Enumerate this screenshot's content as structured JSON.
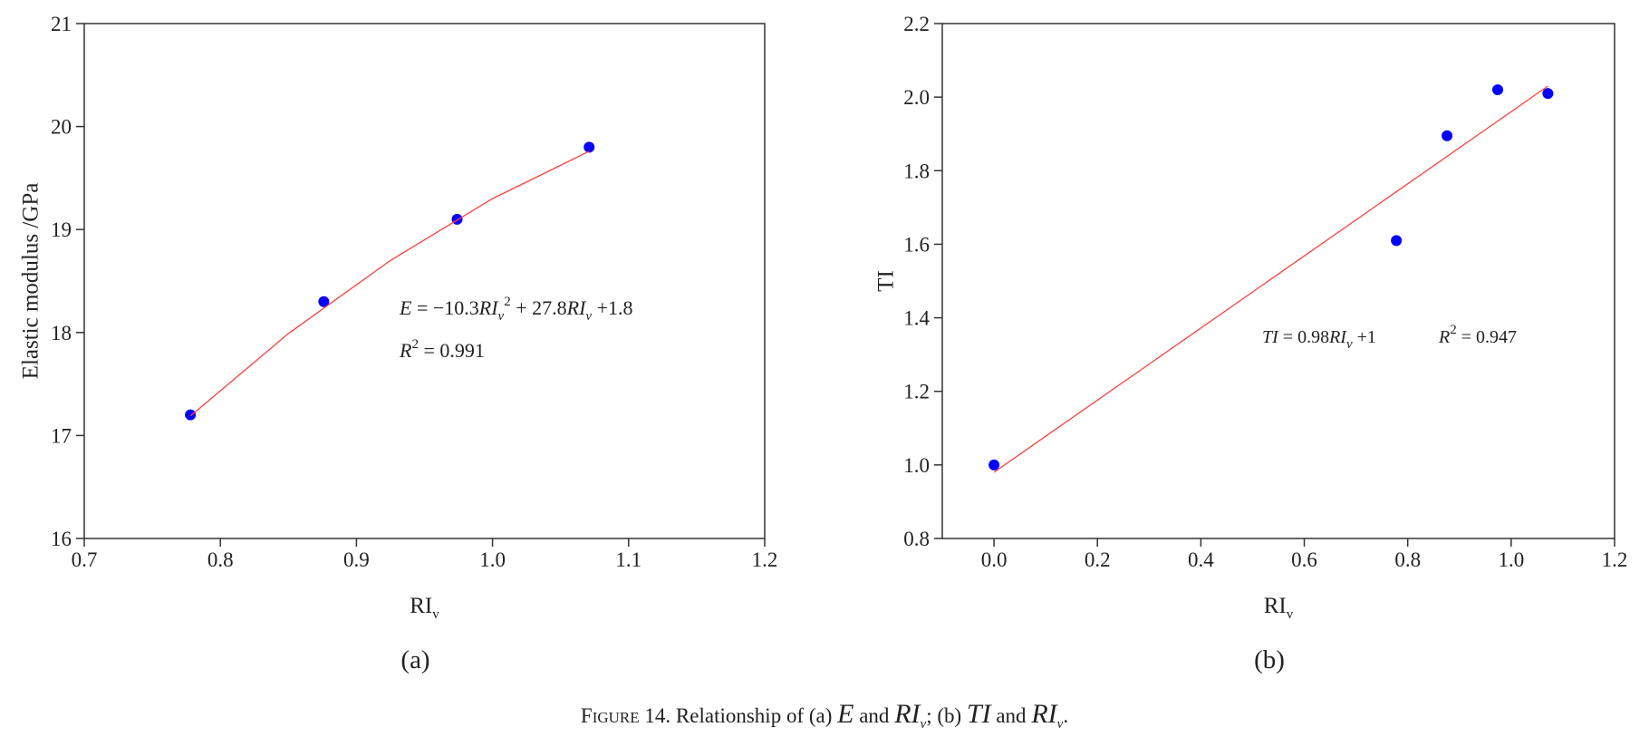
{
  "chart_data": [
    {
      "type": "scatter",
      "panel_label": "(a)",
      "xlabel": [
        "RI",
        "v"
      ],
      "ylabel": "Elastic modulus /GPa",
      "xlim": [
        0.7,
        1.2
      ],
      "ylim": [
        16,
        21
      ],
      "xticks": [
        0.7,
        0.8,
        0.9,
        {
          "value": 1,
          "label": "1.0"
        },
        1.1,
        1.2
      ],
      "yticks": [
        16,
        17,
        18,
        19,
        20,
        21
      ],
      "series": [
        {
          "color": "#0000ff",
          "mode": "markers",
          "x": [
            0.778,
            0.876,
            0.974,
            1.071
          ],
          "values": [
            17.2,
            18.3,
            19.1,
            19.8
          ]
        },
        {
          "color": "#ff4040",
          "mode": "line",
          "x": [
            0.778,
            0.85,
            0.925,
            1.0,
            1.071
          ],
          "values": [
            17.19,
            17.99,
            18.7,
            19.3,
            19.76
          ]
        }
      ],
      "annotations": [
        {
          "parts": [
            "E",
            " = −10.3",
            "RI",
            "v",
            "2",
            " + 27.8",
            "RI",
            "v",
            " +1.8"
          ]
        },
        {
          "parts": [
            "R",
            "2",
            " = 0.991"
          ]
        }
      ]
    },
    {
      "type": "scatter",
      "panel_label": "(b)",
      "xlabel": [
        "RI",
        "v"
      ],
      "ylabel": "TI",
      "xlim": [
        -0.1,
        1.2
      ],
      "ylim": [
        0.8,
        2.2
      ],
      "xticks": [
        {
          "value": 0,
          "label": "0.0"
        },
        0.2,
        0.4,
        0.6,
        0.8,
        {
          "value": 1,
          "label": "1.0"
        },
        1.2
      ],
      "yticks": [
        0.8,
        {
          "value": 1,
          "label": "1.0"
        },
        1.2,
        1.4,
        1.6,
        1.8,
        {
          "value": 2,
          "label": "2.0"
        },
        2.2
      ],
      "series": [
        {
          "color": "#0000ff",
          "mode": "markers",
          "x": [
            0,
            0.778,
            0.876,
            0.974,
            1.071
          ],
          "values": [
            1.0,
            1.61,
            1.895,
            2.02,
            2.01
          ]
        },
        {
          "color": "#ff4040",
          "mode": "line",
          "x": [
            0,
            1.071
          ],
          "values": [
            0.98,
            2.03
          ]
        }
      ],
      "annotations": [
        {
          "parts": [
            "TI",
            " = 0.98",
            "RI",
            "v",
            " +1"
          ]
        },
        {
          "parts": [
            "R",
            "2",
            " = 0.947"
          ]
        }
      ]
    }
  ],
  "caption": {
    "parts": [
      "F",
      "IGURE",
      " 14. Relationship of (a) ",
      "E",
      " and ",
      "RI",
      "v",
      "; (b) ",
      "TI",
      " and ",
      "RI",
      "v",
      "."
    ]
  }
}
